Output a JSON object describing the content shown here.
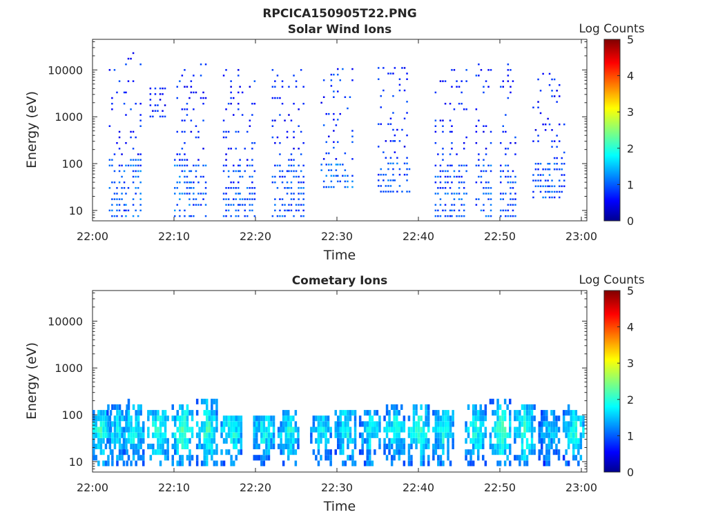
{
  "figure_title": "RPCICA150905T22.PNG",
  "chart_data": [
    {
      "type": "heatmap",
      "title": "Solar Wind Ions",
      "xlabel": "Time",
      "ylabel": "Energy (eV)",
      "y_scale": "log",
      "ylim": [
        6,
        45000
      ],
      "xlim": [
        "22:00",
        "23:01"
      ],
      "x_ticks": [
        "22:00",
        "22:10",
        "22:20",
        "22:30",
        "22:40",
        "22:50",
        "23:00"
      ],
      "y_ticks": [
        {
          "value": 10,
          "label": "10"
        },
        {
          "value": 100,
          "label": "100"
        },
        {
          "value": 1000,
          "label": "1000"
        },
        {
          "value": 10000,
          "label": "10000"
        }
      ],
      "colorbar": {
        "label": "Log Counts",
        "min": 0,
        "max": 5,
        "ticks": [
          "0",
          "1",
          "2",
          "3",
          "4",
          "5"
        ],
        "colormap": "jet"
      },
      "bursts": [
        {
          "time": "22:03",
          "e_min": 6,
          "e_max": 9000,
          "peak_e": 40,
          "level": 0.6
        },
        {
          "time": "22:05",
          "e_min": 6,
          "e_max": 20000,
          "peak_e": 40,
          "level": 0.7
        },
        {
          "time": "22:08",
          "e_min": 800,
          "e_max": 4000,
          "peak_e": 1500,
          "level": 0.3
        },
        {
          "time": "22:11",
          "e_min": 6,
          "e_max": 12000,
          "peak_e": 30,
          "level": 0.7
        },
        {
          "time": "22:13",
          "e_min": 6,
          "e_max": 12000,
          "peak_e": 30,
          "level": 0.6
        },
        {
          "time": "22:17",
          "e_min": 6,
          "e_max": 10000,
          "peak_e": 30,
          "level": 0.6
        },
        {
          "time": "22:19",
          "e_min": 6,
          "e_max": 10000,
          "peak_e": 30,
          "level": 0.6
        },
        {
          "time": "22:23",
          "e_min": 6,
          "e_max": 9000,
          "peak_e": 30,
          "level": 0.6
        },
        {
          "time": "22:25",
          "e_min": 6,
          "e_max": 9000,
          "peak_e": 30,
          "level": 0.6
        },
        {
          "time": "22:29",
          "e_min": 25,
          "e_max": 9000,
          "peak_e": 35,
          "level": 0.7
        },
        {
          "time": "22:31",
          "e_min": 25,
          "e_max": 9000,
          "peak_e": 35,
          "level": 0.7
        },
        {
          "time": "22:36",
          "e_min": 20,
          "e_max": 9000,
          "peak_e": 35,
          "level": 0.6
        },
        {
          "time": "22:38",
          "e_min": 20,
          "e_max": 12000,
          "peak_e": 35,
          "level": 0.6
        },
        {
          "time": "22:43",
          "e_min": 6,
          "e_max": 9000,
          "peak_e": 35,
          "level": 0.6
        },
        {
          "time": "22:45",
          "e_min": 6,
          "e_max": 9000,
          "peak_e": 35,
          "level": 0.6
        },
        {
          "time": "22:48",
          "e_min": 6,
          "e_max": 15000,
          "peak_e": 35,
          "level": 0.6
        },
        {
          "time": "22:51",
          "e_min": 6,
          "e_max": 12000,
          "peak_e": 35,
          "level": 0.6
        },
        {
          "time": "22:55",
          "e_min": 15,
          "e_max": 8000,
          "peak_e": 35,
          "level": 0.6
        },
        {
          "time": "22:57",
          "e_min": 15,
          "e_max": 8000,
          "peak_e": 35,
          "level": 0.6
        }
      ]
    },
    {
      "type": "heatmap",
      "title": "Cometary Ions",
      "xlabel": "Time",
      "ylabel": "Energy (eV)",
      "y_scale": "log",
      "ylim": [
        6,
        45000
      ],
      "xlim": [
        "22:00",
        "23:01"
      ],
      "x_ticks": [
        "22:00",
        "22:10",
        "22:20",
        "22:30",
        "22:40",
        "22:50",
        "23:00"
      ],
      "y_ticks": [
        {
          "value": 10,
          "label": "10"
        },
        {
          "value": 100,
          "label": "100"
        },
        {
          "value": 1000,
          "label": "1000"
        },
        {
          "value": 10000,
          "label": "10000"
        }
      ],
      "colorbar": {
        "label": "Log Counts",
        "min": 0,
        "max": 5,
        "ticks": [
          "0",
          "1",
          "2",
          "3",
          "4",
          "5"
        ],
        "colormap": "jet"
      },
      "bursts": [
        {
          "time": "22:01",
          "e_min": 8,
          "e_max": 150,
          "peak_e": 40,
          "level": 1.7
        },
        {
          "time": "22:03",
          "e_min": 8,
          "e_max": 150,
          "peak_e": 40,
          "level": 1.5
        },
        {
          "time": "22:05",
          "e_min": 8,
          "e_max": 200,
          "peak_e": 40,
          "level": 1.6
        },
        {
          "time": "22:08",
          "e_min": 8,
          "e_max": 120,
          "peak_e": 40,
          "level": 1.8
        },
        {
          "time": "22:11",
          "e_min": 8,
          "e_max": 150,
          "peak_e": 40,
          "level": 1.9
        },
        {
          "time": "22:14",
          "e_min": 8,
          "e_max": 200,
          "peak_e": 40,
          "level": 1.8
        },
        {
          "time": "22:17",
          "e_min": 8,
          "e_max": 90,
          "peak_e": 40,
          "level": 1.7
        },
        {
          "time": "22:21",
          "e_min": 8,
          "e_max": 90,
          "peak_e": 40,
          "level": 1.6
        },
        {
          "time": "22:24",
          "e_min": 8,
          "e_max": 100,
          "peak_e": 40,
          "level": 1.6
        },
        {
          "time": "22:28",
          "e_min": 8,
          "e_max": 90,
          "peak_e": 40,
          "level": 1.5
        },
        {
          "time": "22:31",
          "e_min": 8,
          "e_max": 120,
          "peak_e": 40,
          "level": 1.6
        },
        {
          "time": "22:34",
          "e_min": 8,
          "e_max": 120,
          "peak_e": 40,
          "level": 1.5
        },
        {
          "time": "22:37",
          "e_min": 8,
          "e_max": 130,
          "peak_e": 40,
          "level": 1.6
        },
        {
          "time": "22:40",
          "e_min": 8,
          "e_max": 130,
          "peak_e": 40,
          "level": 1.8
        },
        {
          "time": "22:43",
          "e_min": 8,
          "e_max": 120,
          "peak_e": 40,
          "level": 1.7
        },
        {
          "time": "22:47",
          "e_min": 8,
          "e_max": 130,
          "peak_e": 40,
          "level": 1.7
        },
        {
          "time": "22:50",
          "e_min": 8,
          "e_max": 200,
          "peak_e": 40,
          "level": 1.9
        },
        {
          "time": "22:53",
          "e_min": 8,
          "e_max": 150,
          "peak_e": 40,
          "level": 1.8
        },
        {
          "time": "22:56",
          "e_min": 8,
          "e_max": 100,
          "peak_e": 40,
          "level": 1.3
        },
        {
          "time": "22:59",
          "e_min": 8,
          "e_max": 150,
          "peak_e": 40,
          "level": 1.7
        }
      ]
    }
  ]
}
